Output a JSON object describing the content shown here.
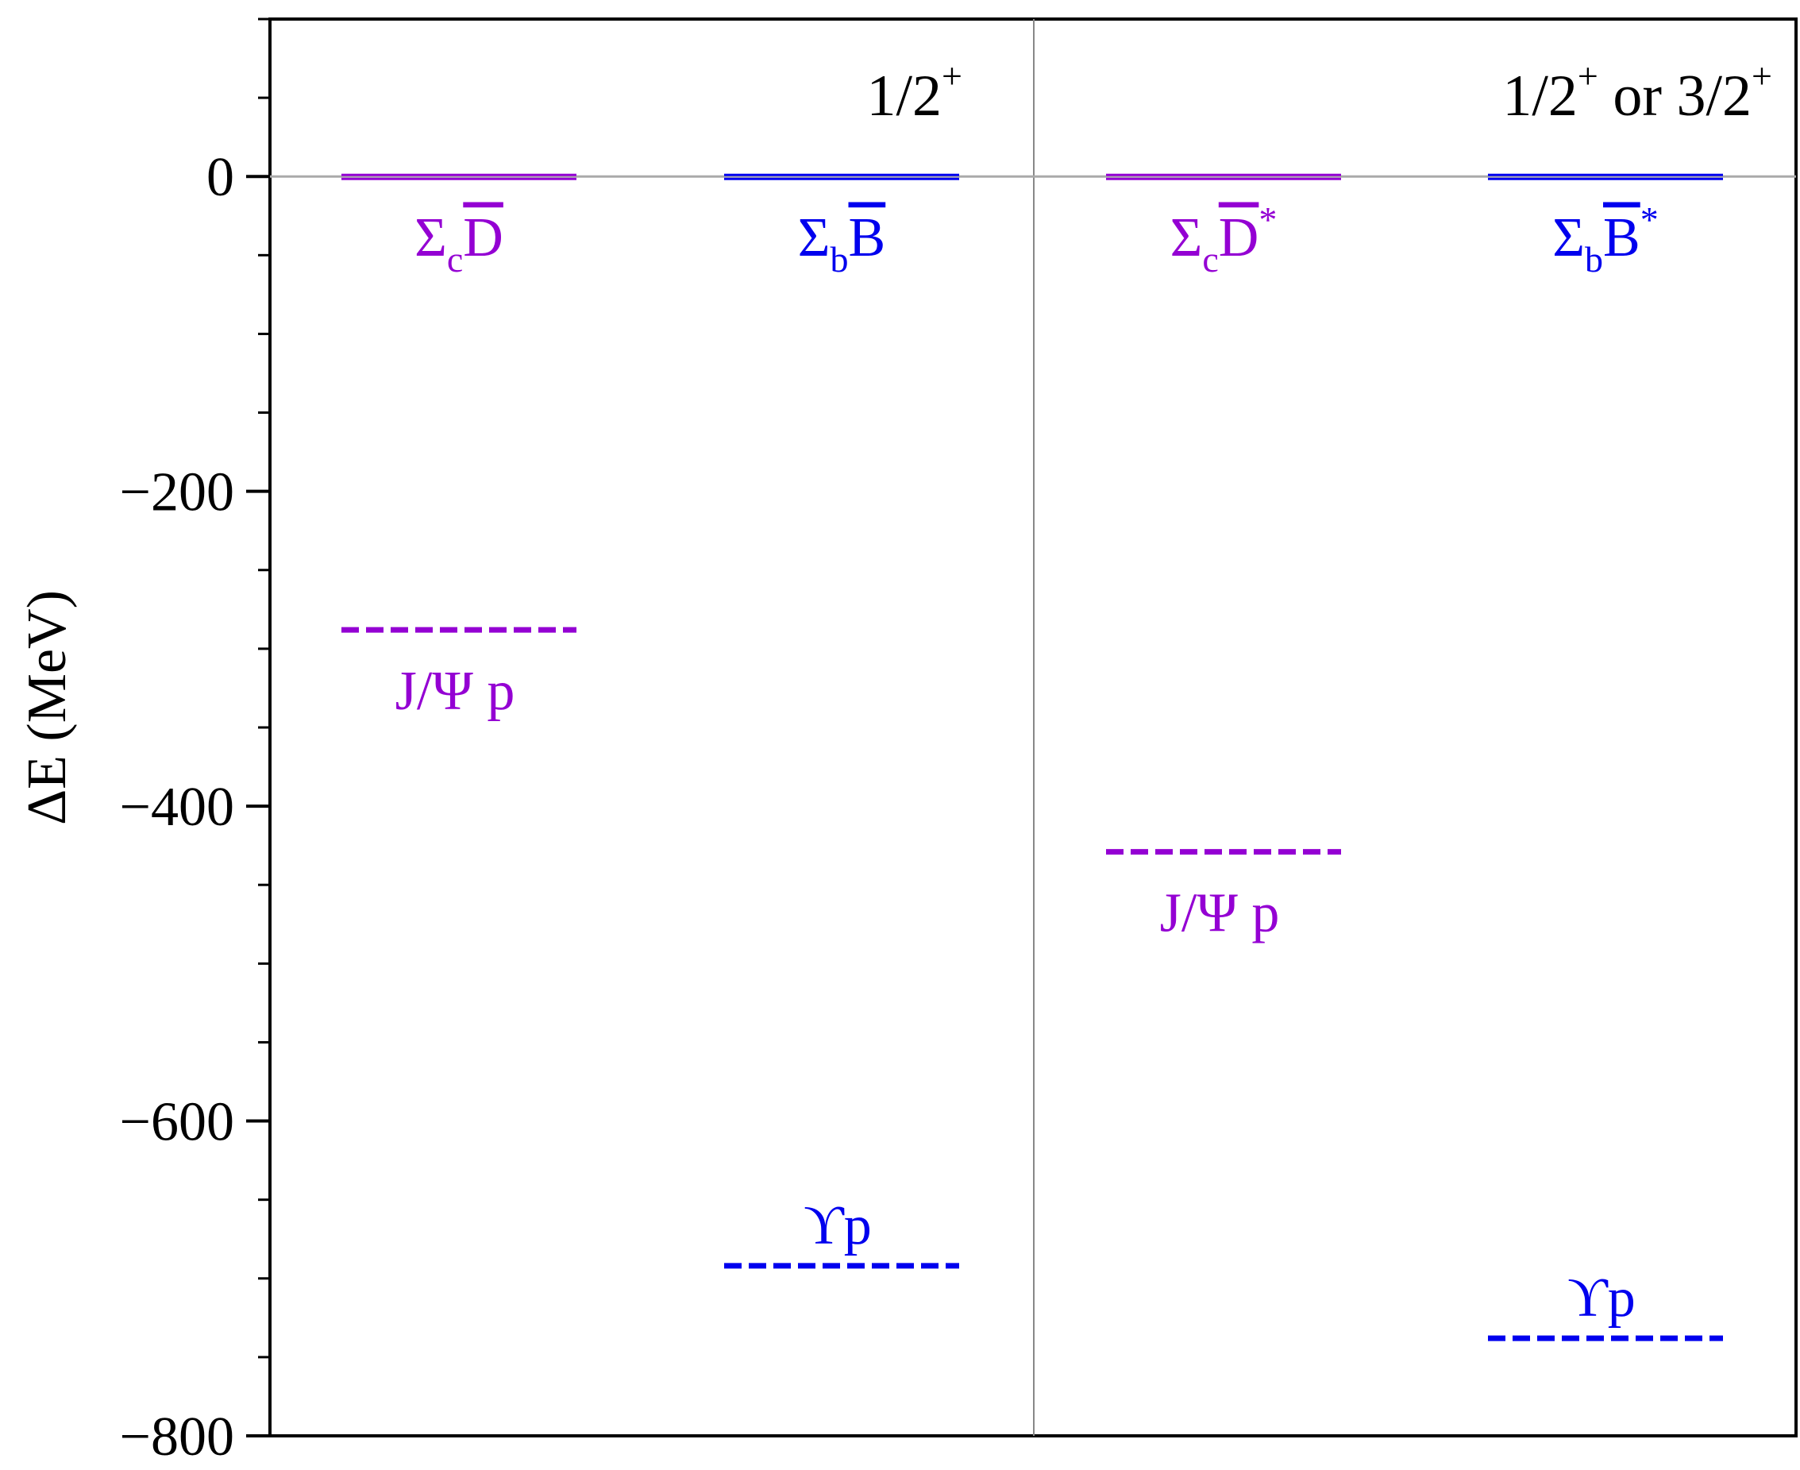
{
  "chart_data": {
    "type": "level-diagram",
    "ylabel": "ΔE (MeV)",
    "ylim": [
      -800,
      100
    ],
    "y_ticks": [
      {
        "value": 0,
        "label": "0"
      },
      {
        "value": -200,
        "label": "−200"
      },
      {
        "value": -400,
        "label": "−400"
      },
      {
        "value": -600,
        "label": "−600"
      },
      {
        "value": -800,
        "label": "−800"
      }
    ],
    "y_minor_step": 50,
    "reference_line": 0,
    "colors": {
      "charm": "#9400D3",
      "bottom": "#0000EE",
      "axis": "#000000",
      "divider": "#888888"
    },
    "panels": [
      {
        "title": "1/2",
        "title_sup": "+",
        "columns": [
          {
            "color_key": "charm",
            "threshold": {
              "base": "Σ",
              "sub": "c",
              "bar": "D",
              "sup": ""
            },
            "level": {
              "value": -288,
              "style": "dashed",
              "label": "J/Ψ p",
              "label_pos": "below"
            }
          },
          {
            "color_key": "bottom",
            "threshold": {
              "base": "Σ",
              "sub": "b",
              "bar": "B",
              "sup": ""
            },
            "level": {
              "value": -692,
              "style": "dashed",
              "label": "ϒp",
              "label_pos": "above"
            }
          }
        ]
      },
      {
        "title": "1/2",
        "title_sup": "+",
        "title_mid": " or 3/2",
        "title_sup2": "+",
        "columns": [
          {
            "color_key": "charm",
            "threshold": {
              "base": "Σ",
              "sub": "c",
              "bar": "D",
              "sup": "*"
            },
            "level": {
              "value": -429,
              "style": "dashed",
              "label": "J/Ψ p",
              "label_pos": "below"
            }
          },
          {
            "color_key": "bottom",
            "threshold": {
              "base": "Σ",
              "sub": "b",
              "bar": "B",
              "sup": "*"
            },
            "level": {
              "value": -738,
              "style": "dashed",
              "label": "ϒp",
              "label_pos": "above"
            }
          }
        ]
      }
    ]
  }
}
